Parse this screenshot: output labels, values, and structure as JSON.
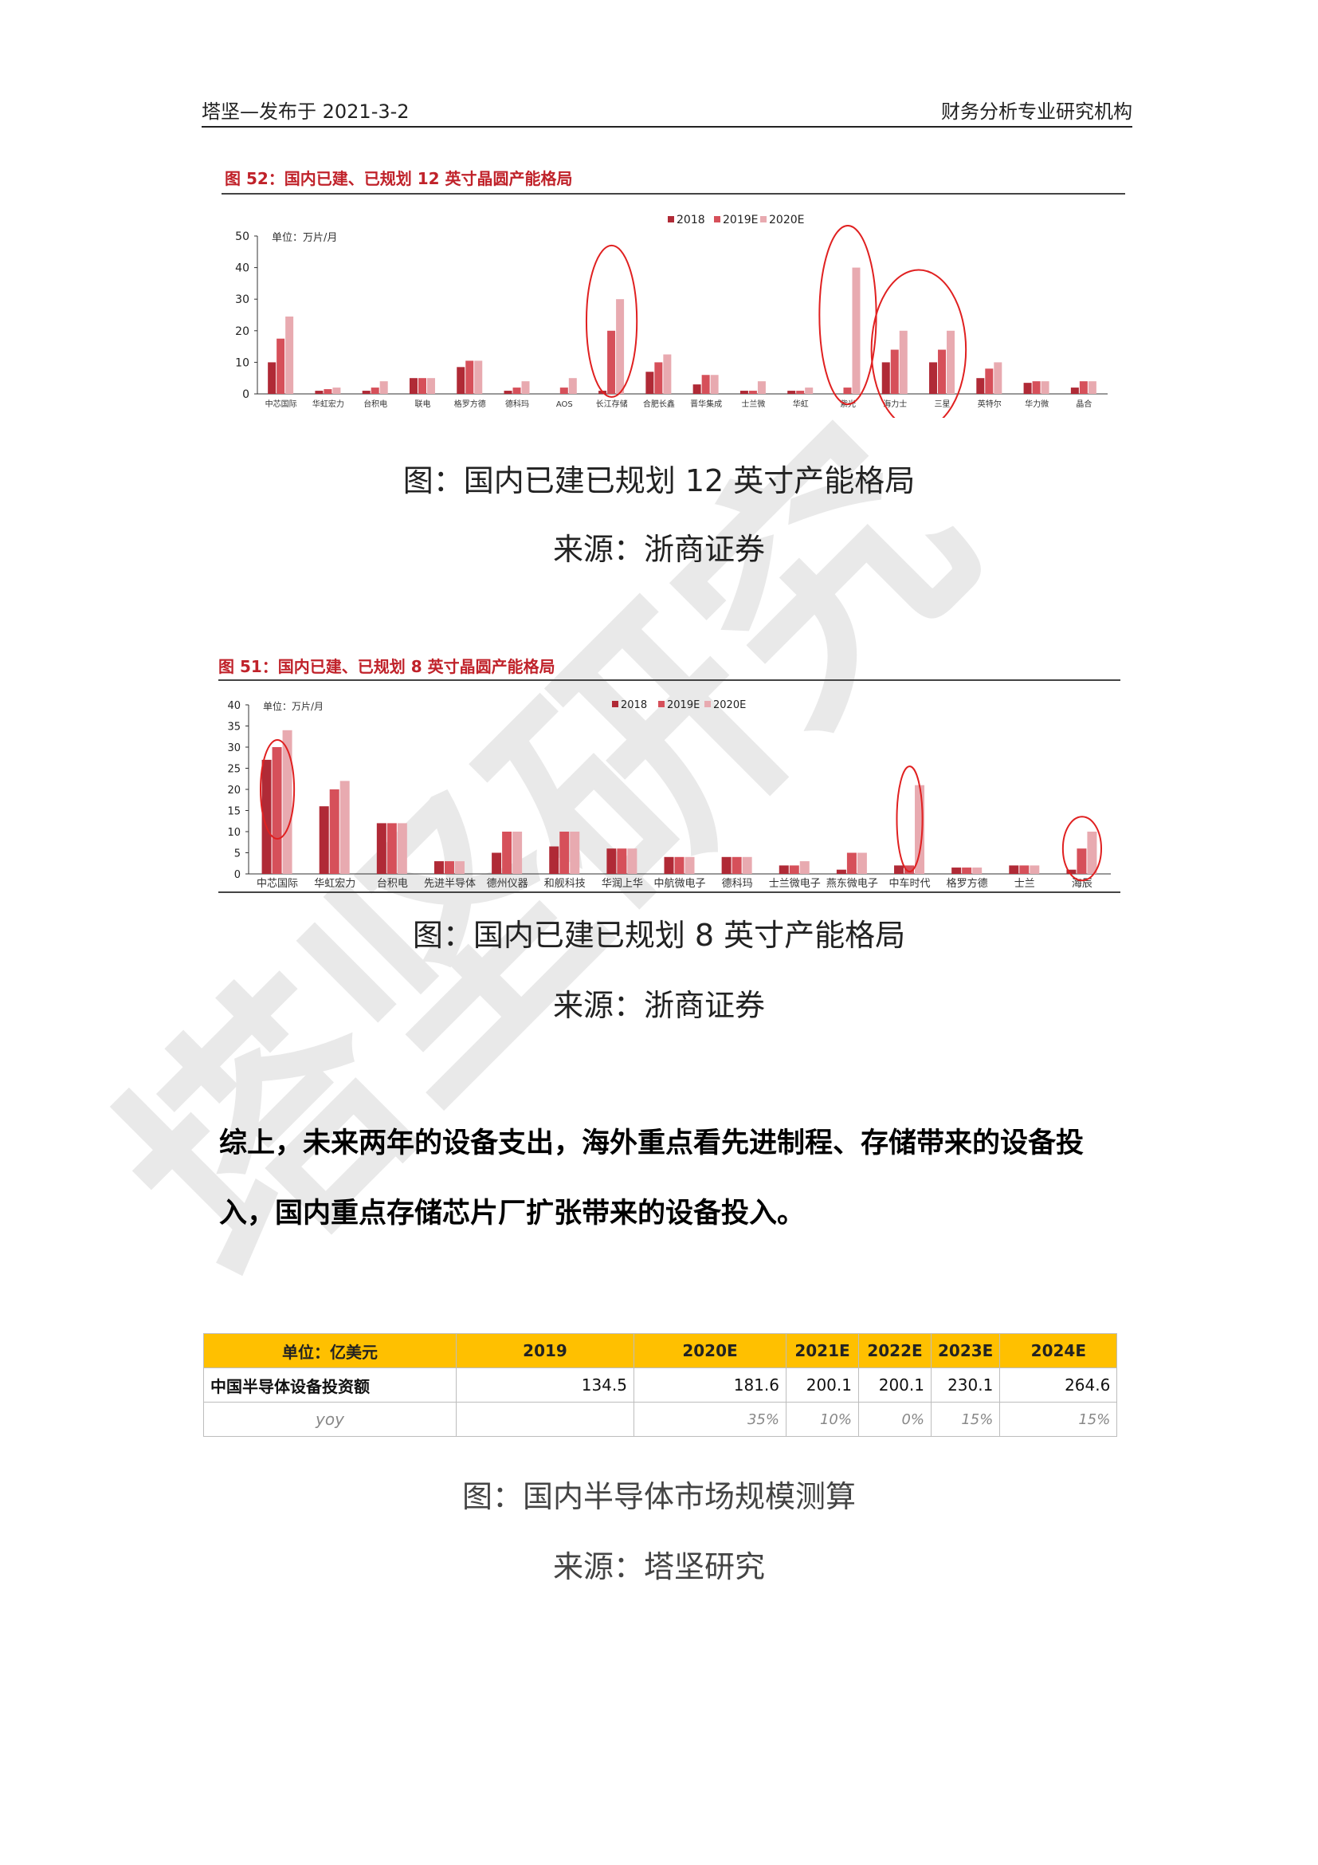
{
  "header": {
    "left": "塔坚—发布于 2021-3-2",
    "right": "财务分析专业研究机构"
  },
  "chart1": {
    "title": "图 52：国内已建、已规划 12 英寸晶圆产能格局",
    "caption": "图：国内已建已规划 12 英寸产能格局",
    "source": "来源：浙商证券",
    "chart_data": {
      "type": "bar",
      "unit_label": "单位：万片/月",
      "legend": [
        "2018",
        "2019E",
        "2020E"
      ],
      "legend_position": "top-right",
      "ylim": [
        0,
        50
      ],
      "yticks": [
        0,
        10,
        20,
        30,
        40,
        50
      ],
      "colors": [
        "#b02a36",
        "#d6505a",
        "#e8aab0"
      ],
      "categories": [
        "中芯国际",
        "华虹宏力",
        "台积电",
        "联电",
        "格罗方德",
        "德科玛",
        "AOS",
        "长江存储",
        "合肥长鑫",
        "晋华集成",
        "士兰微",
        "华虹",
        "紫光",
        "海力士",
        "三星",
        "英特尔",
        "华力微",
        "晶合"
      ],
      "series": [
        {
          "name": "2018",
          "values": [
            10,
            1,
            1,
            5,
            8.5,
            1,
            0,
            1,
            7,
            3,
            1,
            1,
            0,
            10,
            10,
            5,
            3.5,
            2
          ]
        },
        {
          "name": "2019E",
          "values": [
            17.5,
            1.5,
            2,
            5,
            10.5,
            2,
            2,
            20,
            10,
            6,
            1,
            1,
            2,
            14,
            14,
            8,
            4,
            4
          ]
        },
        {
          "name": "2020E",
          "values": [
            24.5,
            2,
            4,
            5,
            10.5,
            4,
            5,
            30,
            12.5,
            6,
            4,
            2,
            40,
            20,
            20,
            10,
            4,
            4
          ]
        }
      ]
    }
  },
  "chart2": {
    "title": "图 51：国内已建、已规划 8 英寸晶圆产能格局",
    "caption": "图：国内已建已规划 8 英寸产能格局",
    "source": "来源：浙商证券",
    "chart_data": {
      "type": "bar",
      "unit_label": "单位：万片/月",
      "legend": [
        "2018",
        "2019E",
        "2020E"
      ],
      "legend_position": "top-right",
      "ylim": [
        0,
        40
      ],
      "yticks": [
        0,
        5,
        10,
        15,
        20,
        25,
        30,
        35,
        40
      ],
      "colors": [
        "#b02a36",
        "#d6505a",
        "#e8aab0"
      ],
      "categories": [
        "中芯国际",
        "华虹宏力",
        "台积电",
        "先进半导体",
        "德州仪器",
        "和舰科技",
        "华润上华",
        "中航微电子",
        "德科玛",
        "士兰微电子",
        "燕东微电子",
        "中车时代",
        "格罗方德",
        "士兰",
        "海辰"
      ],
      "series": [
        {
          "name": "2018",
          "values": [
            27,
            16,
            12,
            3,
            5,
            6.5,
            6,
            4,
            4,
            2,
            1,
            2,
            1.5,
            2,
            1
          ]
        },
        {
          "name": "2019E",
          "values": [
            30,
            20,
            12,
            3,
            10,
            10,
            6,
            4,
            4,
            2,
            5,
            2,
            1.5,
            2,
            6
          ]
        },
        {
          "name": "2020E",
          "values": [
            34,
            22,
            12,
            3,
            10,
            10,
            6,
            4,
            4,
            3,
            5,
            21,
            1.5,
            2,
            10
          ]
        }
      ]
    }
  },
  "summary": "综上，未来两年的设备支出，海外重点看先进制程、存储带来的设备投入，国内重点存储芯片厂扩张带来的设备投入。",
  "table": {
    "headers": [
      "单位：亿美元",
      "2019",
      "2020E",
      "2021E",
      "2022E",
      "2023E",
      "2024E"
    ],
    "rows": [
      [
        "中国半导体设备投资额",
        "134.5",
        "181.6",
        "200.1",
        "200.1",
        "230.1",
        "264.6"
      ],
      [
        "yoy",
        "",
        "35%",
        "10%",
        "0%",
        "15%",
        "15%"
      ]
    ]
  },
  "table_caption": "图：国内半导体市场规模测算",
  "table_source": "来源：塔坚研究",
  "watermark": "塔坚研究"
}
